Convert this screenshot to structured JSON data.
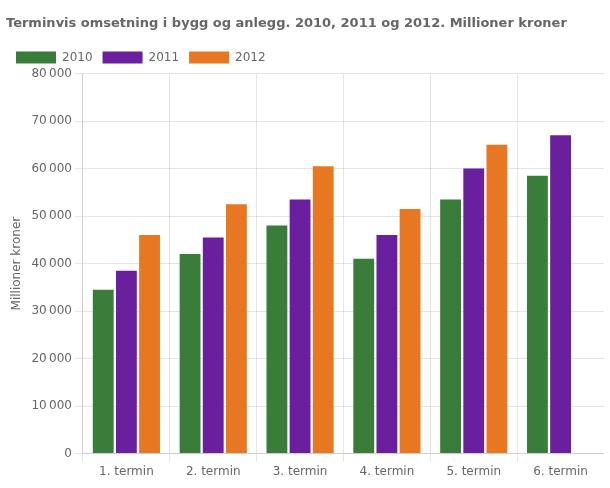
{
  "chart_data": {
    "type": "bar",
    "title": "Terminvis omsetning i bygg og anlegg. 2010, 2011 og 2012. Millioner kroner",
    "ylabel": "Millioner kroner",
    "categories": [
      "1. termin",
      "2. termin",
      "3. termin",
      "4. termin",
      "5. termin",
      "6. termin"
    ],
    "series": [
      {
        "name": "2010",
        "color": "#3a7d3a",
        "values": [
          34500,
          42000,
          48000,
          41000,
          53500,
          58500
        ]
      },
      {
        "name": "2011",
        "color": "#6a1f9e",
        "values": [
          38500,
          45500,
          53500,
          46000,
          60000,
          67000
        ]
      },
      {
        "name": "2012",
        "color": "#e87722",
        "values": [
          46000,
          52500,
          60500,
          51500,
          65000,
          0
        ]
      }
    ],
    "ylim": [
      0,
      80000
    ],
    "yticks": [
      0,
      {
        "value": 10000,
        "label": "10 000"
      },
      {
        "value": 20000,
        "label": "20 000"
      },
      {
        "value": 30000,
        "label": "30 000"
      },
      {
        "value": 40000,
        "label": "40 000"
      },
      {
        "value": 50000,
        "label": "50 000"
      },
      {
        "value": 60000,
        "label": "60 000"
      },
      {
        "value": 70000,
        "label": "70 000"
      },
      {
        "value": 80000,
        "label": "80 000"
      }
    ],
    "grid": true,
    "legend": "upper left"
  }
}
